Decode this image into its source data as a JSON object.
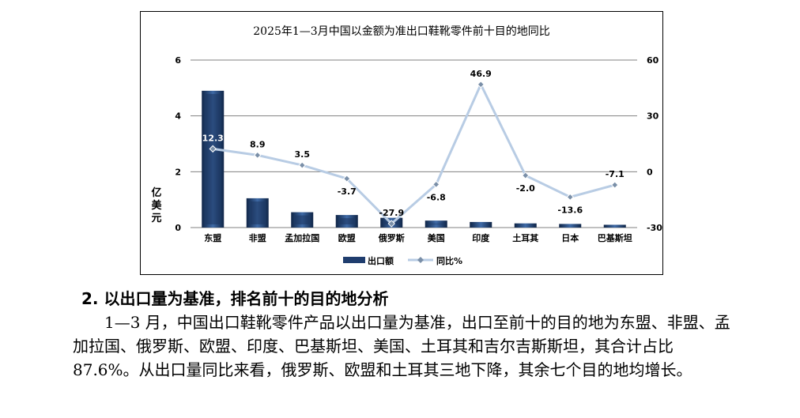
{
  "chart_data": {
    "type": "bar+line",
    "title": "2025年1—3月中国以金额为准出口鞋靴零件前十目的地同比",
    "categories": [
      "东盟",
      "非盟",
      "孟加拉国",
      "欧盟",
      "俄罗斯",
      "美国",
      "印度",
      "土耳其",
      "日本",
      "巴基斯坦"
    ],
    "series": [
      {
        "name": "出口额",
        "type": "bar",
        "axis": "left",
        "color": "#1f3d6e",
        "values": [
          4.9,
          1.05,
          0.55,
          0.45,
          0.35,
          0.25,
          0.2,
          0.15,
          0.13,
          0.1
        ]
      },
      {
        "name": "同比%",
        "type": "line",
        "axis": "right",
        "color": "#b8cce4",
        "values": [
          12.3,
          8.9,
          3.5,
          -3.7,
          -27.9,
          -6.8,
          46.9,
          -2.0,
          -13.6,
          -7.1
        ],
        "labels": [
          "12.3",
          "8.9",
          "3.5",
          "-3.7",
          "-27.9",
          "-6.8",
          "46.9",
          "-2.0",
          "-13.6",
          "-7.1"
        ]
      }
    ],
    "ylabel_left": "亿美元",
    "ylim_left": [
      0,
      6
    ],
    "yticks_left": [
      "0",
      "2",
      "4",
      "6"
    ],
    "ylim_right": [
      -30,
      60
    ],
    "yticks_right": [
      "-30",
      "0",
      "30",
      "60"
    ],
    "grid": true,
    "legend_position": "bottom"
  },
  "article": {
    "heading": "2. 以出口量为基准，排名前十的目的地分析",
    "paragraph": "1—3 月，中国出口鞋靴零件产品以出口量为基准，出口至前十的目的地为东盟、非盟、孟加拉国、俄罗斯、欧盟、印度、巴基斯坦、美国、土耳其和吉尔吉斯斯坦，其合计占比 87.6%。从出口量同比来看，俄罗斯、欧盟和土耳其三地下降，其余七个目的地均增长。"
  }
}
